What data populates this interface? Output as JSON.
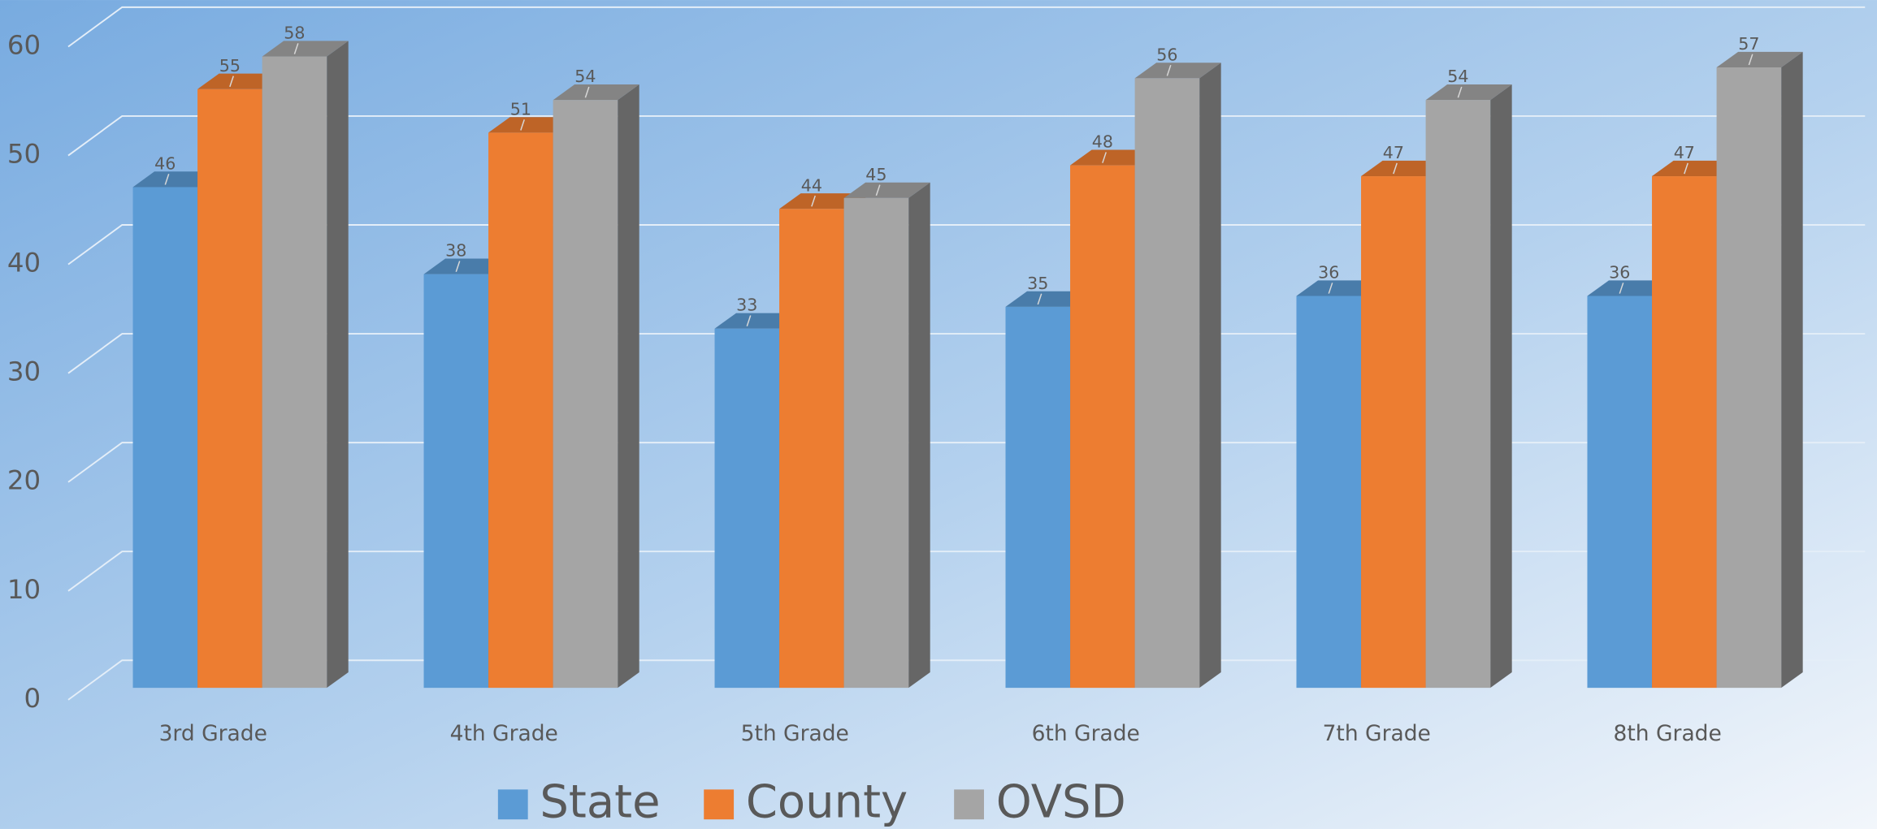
{
  "chart_data": {
    "type": "bar3d",
    "categories": [
      "3rd Grade",
      "4th Grade",
      "5th Grade",
      "6th Grade",
      "7th Grade",
      "8th Grade"
    ],
    "series": [
      {
        "name": "State",
        "color": "#5b9bd5",
        "values": [
          46,
          38,
          33,
          35,
          36,
          36
        ]
      },
      {
        "name": "County",
        "color": "#ed7d31",
        "values": [
          55,
          51,
          44,
          48,
          47,
          47
        ]
      },
      {
        "name": "OVSD",
        "color": "#a5a5a5",
        "values": [
          58,
          54,
          45,
          56,
          54,
          57
        ]
      }
    ],
    "ylim": [
      0,
      60
    ],
    "yticks": [
      0,
      10,
      20,
      30,
      40,
      50,
      60
    ],
    "grid": true,
    "legend": "bottom"
  }
}
